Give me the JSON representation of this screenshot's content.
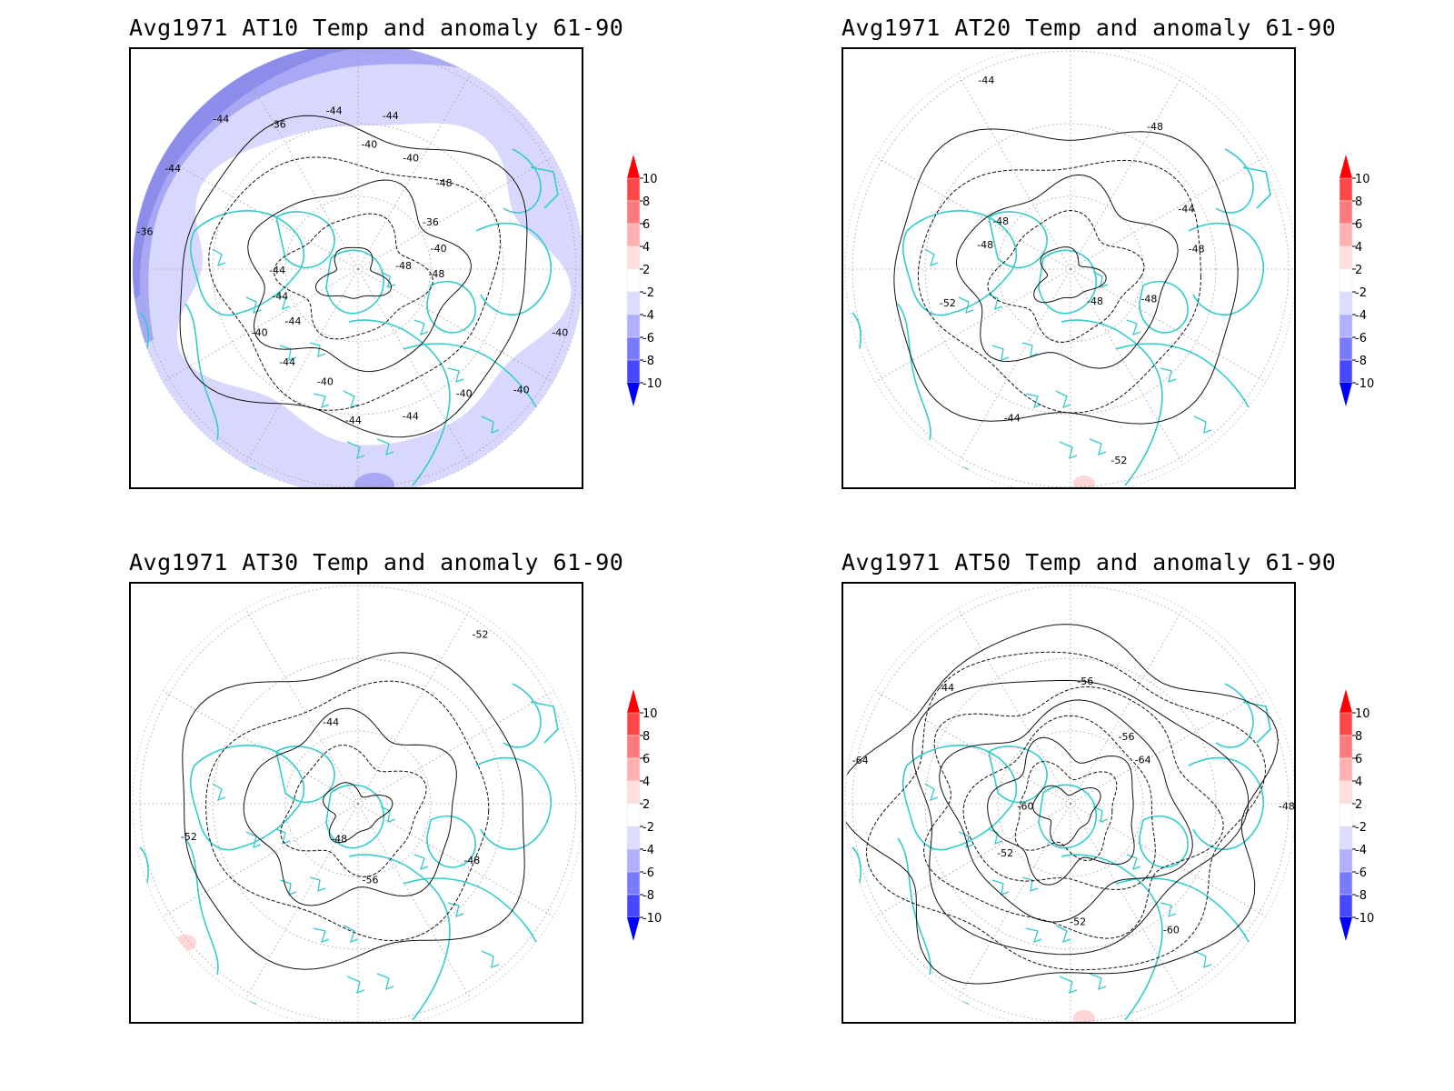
{
  "panels": [
    {
      "id": "at10",
      "title": "Avg1971 AT10 Temp and anomaly 61-90",
      "contour_labels": [
        "-48",
        "-44",
        "-40",
        "-40",
        "-36",
        "-36",
        "-40",
        "-36",
        "-40",
        "-44",
        "-40",
        "-44",
        "-44",
        "-40",
        "-44",
        "-44",
        "-40",
        "-44",
        "-48",
        "-44",
        "-44",
        "-48",
        "-40",
        "-44"
      ],
      "anomaly_fill": "cool-ring"
    },
    {
      "id": "at20",
      "title": "Avg1971 AT20 Temp and anomaly 61-90",
      "contour_labels": [
        "-48",
        "-48",
        "-44",
        "-44",
        "-44",
        "-48",
        "-52",
        "-48",
        "-52",
        "-48",
        "-48"
      ],
      "anomaly_fill": "small-warm-patch"
    },
    {
      "id": "at30",
      "title": "Avg1971 AT30 Temp and anomaly 61-90",
      "contour_labels": [
        "-48",
        "-44",
        "-48",
        "-52",
        "-52",
        "-56"
      ],
      "anomaly_fill": "small-warm-patch"
    },
    {
      "id": "at50",
      "title": "Avg1971 AT50 Temp and anomaly 61-90",
      "contour_labels": [
        "-60",
        "-56",
        "-52",
        "-44",
        "-48",
        "-52",
        "-56",
        "-60",
        "-64",
        "-64"
      ],
      "anomaly_fill": "small-warm-patch"
    }
  ],
  "colorbar": {
    "ticks": [
      "10",
      "8",
      "6",
      "4",
      "2",
      "-2",
      "-4",
      "-6",
      "-8",
      "-10"
    ],
    "colors": [
      "#ff0000",
      "#ff4848",
      "#ff7a7a",
      "#ffb0b0",
      "#ffdede",
      "#ffffff",
      "#dcdcff",
      "#b0b0ff",
      "#7a7aff",
      "#4848ff",
      "#0000ff"
    ]
  }
}
